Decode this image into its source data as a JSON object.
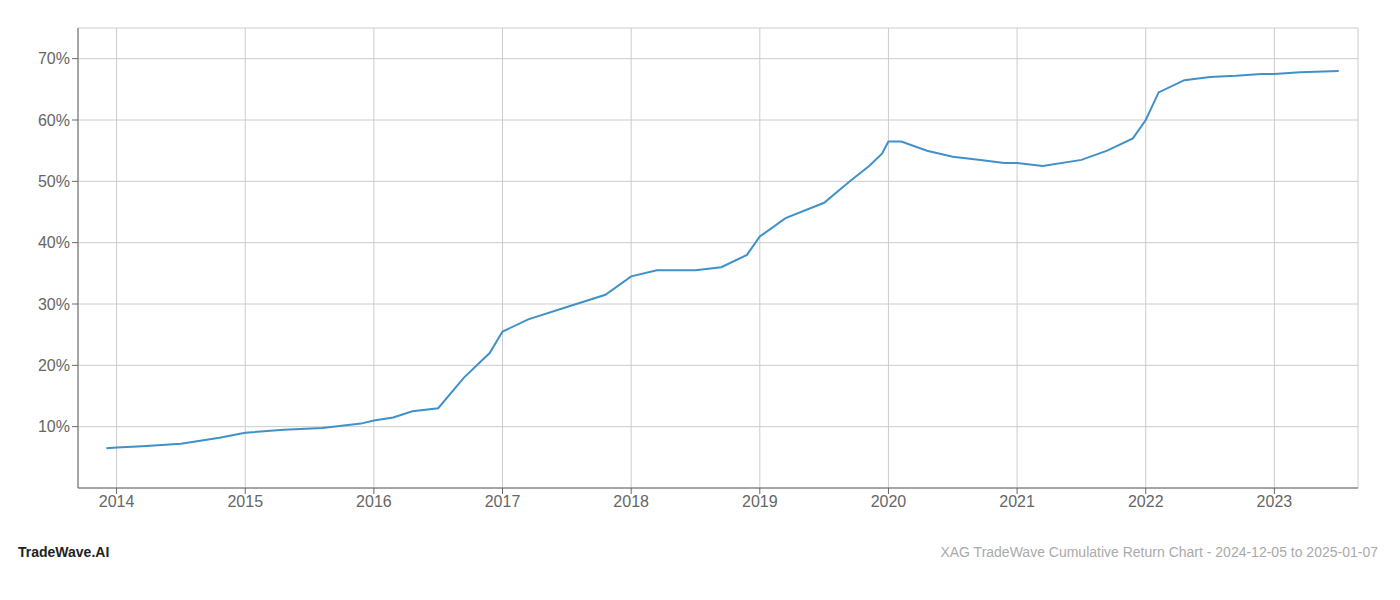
{
  "chart_data": {
    "type": "line",
    "x": [
      2013.92,
      2014.0,
      2014.2,
      2014.5,
      2014.8,
      2015.0,
      2015.3,
      2015.6,
      2015.9,
      2016.0,
      2016.15,
      2016.3,
      2016.5,
      2016.7,
      2016.9,
      2017.0,
      2017.2,
      2017.5,
      2017.8,
      2018.0,
      2018.2,
      2018.5,
      2018.7,
      2018.9,
      2019.0,
      2019.2,
      2019.5,
      2019.7,
      2019.85,
      2019.95,
      2020.0,
      2020.1,
      2020.3,
      2020.5,
      2020.7,
      2020.9,
      2021.0,
      2021.2,
      2021.5,
      2021.7,
      2021.9,
      2022.0,
      2022.1,
      2022.3,
      2022.5,
      2022.7,
      2022.9,
      2023.0,
      2023.2,
      2023.5
    ],
    "values": [
      6.5,
      6.6,
      6.8,
      7.2,
      8.2,
      9.0,
      9.5,
      9.8,
      10.5,
      11.0,
      11.5,
      12.5,
      13.0,
      18.0,
      22.0,
      25.5,
      27.5,
      29.5,
      31.5,
      34.5,
      35.5,
      35.5,
      36.0,
      38.0,
      41.0,
      44.0,
      46.5,
      50.0,
      52.5,
      54.5,
      56.5,
      56.5,
      55.0,
      54.0,
      53.5,
      53.0,
      53.0,
      52.5,
      53.5,
      55.0,
      57.0,
      60.0,
      64.5,
      66.5,
      67.0,
      67.2,
      67.5,
      67.5,
      67.8,
      68.0
    ],
    "color": "#4191c9",
    "xlim": [
      2013.7,
      2023.65
    ],
    "ylim": [
      0,
      75
    ],
    "xticks": [
      2014,
      2015,
      2016,
      2017,
      2018,
      2019,
      2020,
      2021,
      2022,
      2023
    ],
    "yticks": [
      {
        "value": 10,
        "label": "10%"
      },
      {
        "value": 20,
        "label": "20%"
      },
      {
        "value": 30,
        "label": "30%"
      },
      {
        "value": 40,
        "label": "40%"
      },
      {
        "value": 50,
        "label": "50%"
      },
      {
        "value": 60,
        "label": "60%"
      },
      {
        "value": 70,
        "label": "70%"
      }
    ],
    "grid": true,
    "annotations": [
      "TradeWave.AI",
      "XAG TradeWave Cumulative Return Chart - 2024-12-05 to 2025-01-07"
    ]
  }
}
